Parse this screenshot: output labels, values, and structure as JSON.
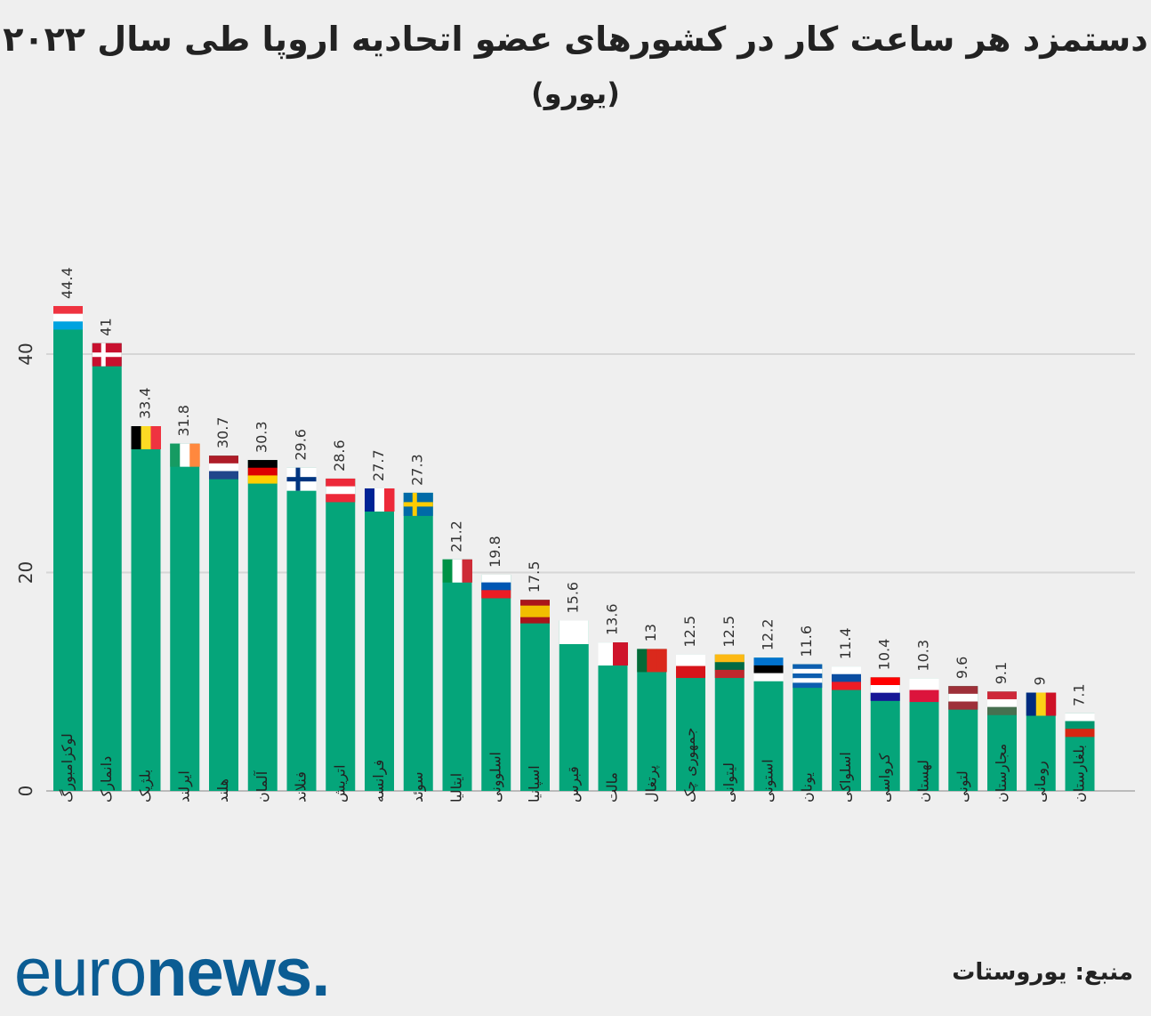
{
  "chart_data": {
    "type": "bar",
    "title": "دستمزد هر ساعت کار در کشورهای عضو اتحادیه اروپا طی سال ۲۰۲۲",
    "subtitle": "(یورو)",
    "xlabel": "",
    "ylabel": "",
    "ylim": [
      0,
      45
    ],
    "yticks": [
      0,
      20,
      40
    ],
    "grid": true,
    "bar_color": "#05a57a",
    "categories": [
      "لوکزامبورگ",
      "دانمارک",
      "بلژیک",
      "ایرلند",
      "هلند",
      "آلمان",
      "فنلاند",
      "اتریش",
      "فرانسه",
      "سوئد",
      "ایتالیا",
      "اسلوونی",
      "اسپانیا",
      "قبرس",
      "مالت",
      "پرتغال",
      "جمهوری چک",
      "لیتوانی",
      "استونی",
      "یونان",
      "اسلواکی",
      "کرواسی",
      "لهستان",
      "لتونی",
      "مجارستان",
      "رومانی",
      "بلغارستان"
    ],
    "values": [
      44.4,
      41,
      33.4,
      31.8,
      30.7,
      30.3,
      29.6,
      28.6,
      27.7,
      27.3,
      21.2,
      19.8,
      17.5,
      15.6,
      13.6,
      13,
      12.5,
      12.5,
      12.2,
      11.6,
      11.4,
      10.4,
      10.3,
      9.6,
      9.1,
      9,
      7.1
    ],
    "flags": [
      {
        "o": "h",
        "c": [
          "#ef3340",
          "#ffffff",
          "#00a3e0"
        ]
      },
      {
        "o": "cross",
        "c": [
          "#c8102e",
          "#ffffff"
        ]
      },
      {
        "o": "v",
        "c": [
          "#000000",
          "#fdda24",
          "#ef3340"
        ]
      },
      {
        "o": "v",
        "c": [
          "#169b62",
          "#ffffff",
          "#ff883e"
        ]
      },
      {
        "o": "h",
        "c": [
          "#ae1c28",
          "#ffffff",
          "#21468b"
        ]
      },
      {
        "o": "h",
        "c": [
          "#000000",
          "#dd0000",
          "#ffce00"
        ]
      },
      {
        "o": "cross",
        "c": [
          "#ffffff",
          "#003580"
        ]
      },
      {
        "o": "h",
        "c": [
          "#ed2939",
          "#ffffff",
          "#ed2939"
        ]
      },
      {
        "o": "v",
        "c": [
          "#002395",
          "#ffffff",
          "#ed2939"
        ]
      },
      {
        "o": "cross",
        "c": [
          "#006aa7",
          "#fecc00"
        ]
      },
      {
        "o": "v",
        "c": [
          "#009246",
          "#ffffff",
          "#ce2b37"
        ]
      },
      {
        "o": "h",
        "c": [
          "#ffffff",
          "#0056b3",
          "#ed1c24"
        ]
      },
      {
        "o": "h",
        "c": [
          "#aa151b",
          "#f1bf00",
          "#f1bf00",
          "#aa151b"
        ]
      },
      {
        "o": "h",
        "c": [
          "#ffffff"
        ]
      },
      {
        "o": "v",
        "c": [
          "#ffffff",
          "#cf142b"
        ]
      },
      {
        "o": "v",
        "c": [
          "#046a38",
          "#da291c",
          "#da291c"
        ]
      },
      {
        "o": "h",
        "c": [
          "#ffffff",
          "#d7141a"
        ]
      },
      {
        "o": "h",
        "c": [
          "#fdb913",
          "#006a44",
          "#c1272d"
        ]
      },
      {
        "o": "h",
        "c": [
          "#0072ce",
          "#000000",
          "#ffffff"
        ]
      },
      {
        "o": "h",
        "c": [
          "#0d5eaf",
          "#ffffff",
          "#0d5eaf",
          "#ffffff",
          "#0d5eaf"
        ]
      },
      {
        "o": "h",
        "c": [
          "#ffffff",
          "#0b4ea2",
          "#ee1c25"
        ]
      },
      {
        "o": "h",
        "c": [
          "#ff0000",
          "#ffffff",
          "#171796"
        ]
      },
      {
        "o": "h",
        "c": [
          "#ffffff",
          "#dc143c"
        ]
      },
      {
        "o": "h",
        "c": [
          "#9e3039",
          "#ffffff",
          "#9e3039"
        ]
      },
      {
        "o": "h",
        "c": [
          "#ce2939",
          "#ffffff",
          "#477050"
        ]
      },
      {
        "o": "v",
        "c": [
          "#002b7f",
          "#fcd116",
          "#ce1126"
        ]
      },
      {
        "o": "h",
        "c": [
          "#ffffff",
          "#00966e",
          "#d62612"
        ]
      }
    ]
  },
  "footer": {
    "logo_light": "euro",
    "logo_bold": "news.",
    "source": "منبع: یوروستات"
  }
}
